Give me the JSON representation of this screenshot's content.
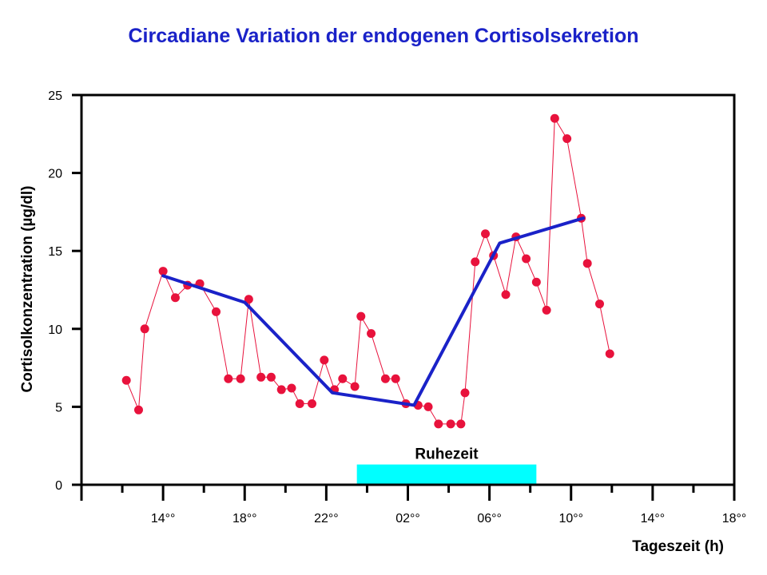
{
  "chart_data": {
    "type": "line",
    "title": "Circadiane Variation der endogenen Cortisolsekretion",
    "xlabel": "Tageszeit (h)",
    "ylabel": "Cortisolkonzentration (µg/dl)",
    "ylim": [
      0,
      25
    ],
    "yticks": [
      "0",
      "5",
      "10",
      "15",
      "20",
      "25"
    ],
    "xlim": [
      10,
      42
    ],
    "xtick_values": [
      14,
      18,
      22,
      26,
      30,
      34,
      38,
      42
    ],
    "xtick_labels": [
      "14°°",
      "18°°",
      "22°°",
      "02°°",
      "06°°",
      "10°°",
      "14°°",
      "18°°"
    ],
    "grid": false,
    "series": [
      {
        "color": "#e8123c",
        "style": "thin-line-with-dots",
        "points": [
          [
            12.2,
            6.7
          ],
          [
            12.8,
            4.8
          ],
          [
            13.1,
            10.0
          ],
          [
            14.0,
            13.7
          ],
          [
            14.6,
            12.0
          ],
          [
            15.2,
            12.8
          ],
          [
            15.8,
            12.9
          ],
          [
            16.6,
            11.1
          ],
          [
            17.2,
            6.8
          ],
          [
            17.8,
            6.8
          ],
          [
            18.2,
            11.9
          ],
          [
            18.8,
            6.9
          ],
          [
            19.3,
            6.9
          ],
          [
            19.8,
            6.1
          ],
          [
            20.3,
            6.2
          ],
          [
            20.7,
            5.2
          ],
          [
            21.3,
            5.2
          ],
          [
            21.9,
            8.0
          ],
          [
            22.4,
            6.1
          ],
          [
            22.8,
            6.8
          ],
          [
            23.4,
            6.3
          ],
          [
            23.7,
            10.8
          ],
          [
            24.2,
            9.7
          ],
          [
            24.9,
            6.8
          ],
          [
            25.4,
            6.8
          ],
          [
            25.9,
            5.2
          ],
          [
            26.5,
            5.1
          ],
          [
            27.0,
            5.0
          ],
          [
            27.5,
            3.9
          ],
          [
            28.1,
            3.9
          ],
          [
            28.6,
            3.9
          ],
          [
            28.8,
            5.9
          ],
          [
            29.3,
            14.3
          ],
          [
            29.8,
            16.1
          ],
          [
            30.2,
            14.7
          ],
          [
            30.8,
            12.2
          ],
          [
            31.3,
            15.9
          ],
          [
            31.8,
            14.5
          ],
          [
            32.3,
            13.0
          ],
          [
            32.8,
            11.2
          ],
          [
            33.2,
            23.5
          ],
          [
            33.8,
            22.2
          ],
          [
            34.5,
            17.1
          ],
          [
            34.8,
            14.2
          ],
          [
            35.4,
            11.6
          ],
          [
            35.9,
            8.4
          ]
        ]
      },
      {
        "color": "#1a22c8",
        "style": "thick-line",
        "points": [
          [
            14.0,
            13.4
          ],
          [
            18.0,
            11.7
          ],
          [
            22.3,
            5.9
          ],
          [
            26.3,
            5.1
          ],
          [
            30.5,
            15.5
          ],
          [
            34.6,
            17.1
          ]
        ]
      }
    ],
    "annotation": {
      "label": "Ruhezeit",
      "x_start": 23.5,
      "x_end": 32.3,
      "y_start": 0,
      "y_end": 1.3,
      "color": "#00ffff"
    }
  }
}
